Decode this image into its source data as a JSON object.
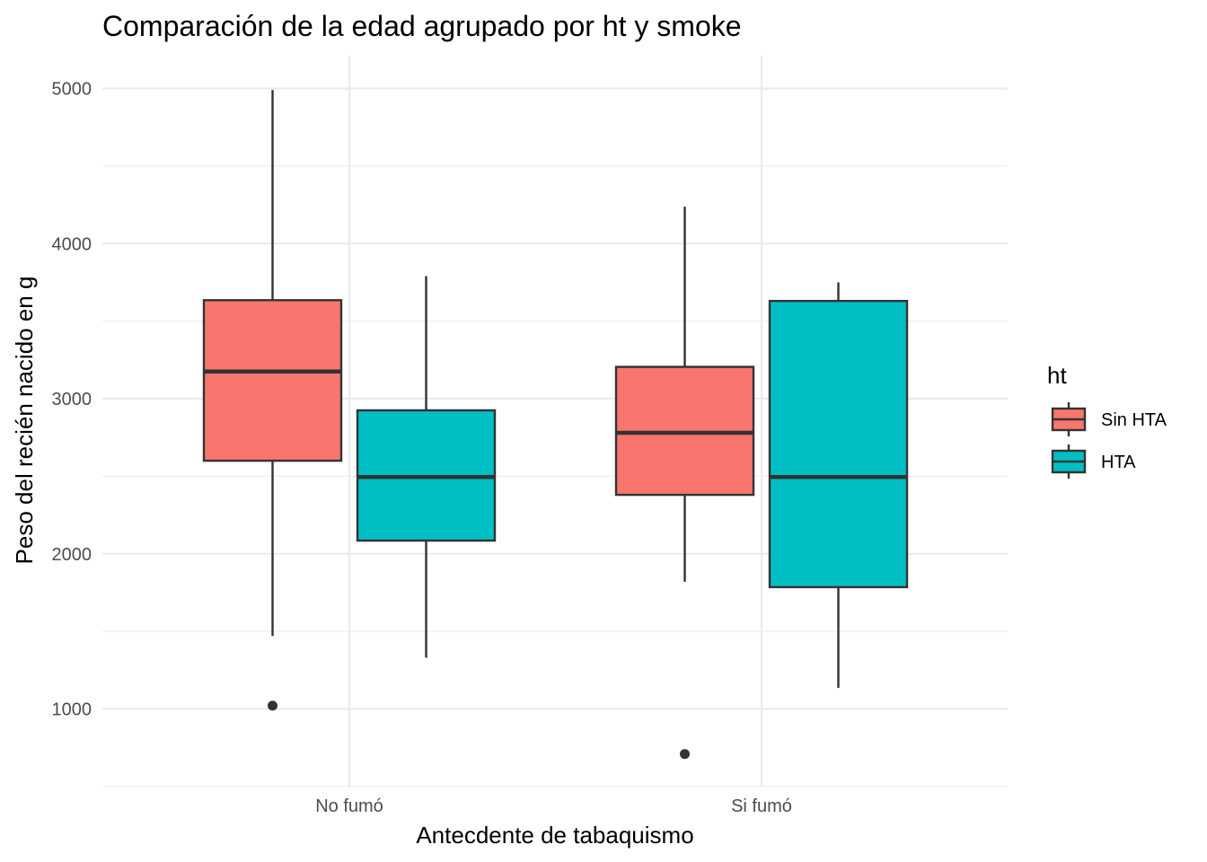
{
  "chart_data": {
    "type": "boxplot",
    "title": "Comparación de la edad agrupado por ht y smoke",
    "xlabel": "Antecdente de tabaquismo",
    "ylabel": "Peso del recién nacido en g",
    "categories": [
      "No fumó",
      "Si fumó"
    ],
    "y_ticks": [
      1000,
      2000,
      3000,
      4000,
      5000
    ],
    "ylim": [
      500,
      5200
    ],
    "legend": {
      "title": "ht",
      "position": "right",
      "entries": [
        {
          "label": "Sin HTA",
          "color": "#F8766D"
        },
        {
          "label": "HTA",
          "color": "#00BFC4"
        }
      ]
    },
    "series": [
      {
        "name": "Sin HTA",
        "color": "#F8766D",
        "boxes": [
          {
            "category": "No fumó",
            "whisker_low": 1470,
            "q1": 2600,
            "median": 3175,
            "q3": 3635,
            "whisker_high": 4990,
            "outliers": [
              1021
            ]
          },
          {
            "category": "Si fumó",
            "whisker_low": 1820,
            "q1": 2380,
            "median": 2780,
            "q3": 3205,
            "whisker_high": 4238,
            "outliers": [
              709
            ]
          }
        ]
      },
      {
        "name": "HTA",
        "color": "#00BFC4",
        "boxes": [
          {
            "category": "No fumó",
            "whisker_low": 1330,
            "q1": 2085,
            "median": 2495,
            "q3": 2925,
            "whisker_high": 3790,
            "outliers": []
          },
          {
            "category": "Si fumó",
            "whisker_low": 1135,
            "q1": 1785,
            "median": 2495,
            "q3": 3630,
            "whisker_high": 3750,
            "outliers": []
          }
        ]
      }
    ]
  }
}
